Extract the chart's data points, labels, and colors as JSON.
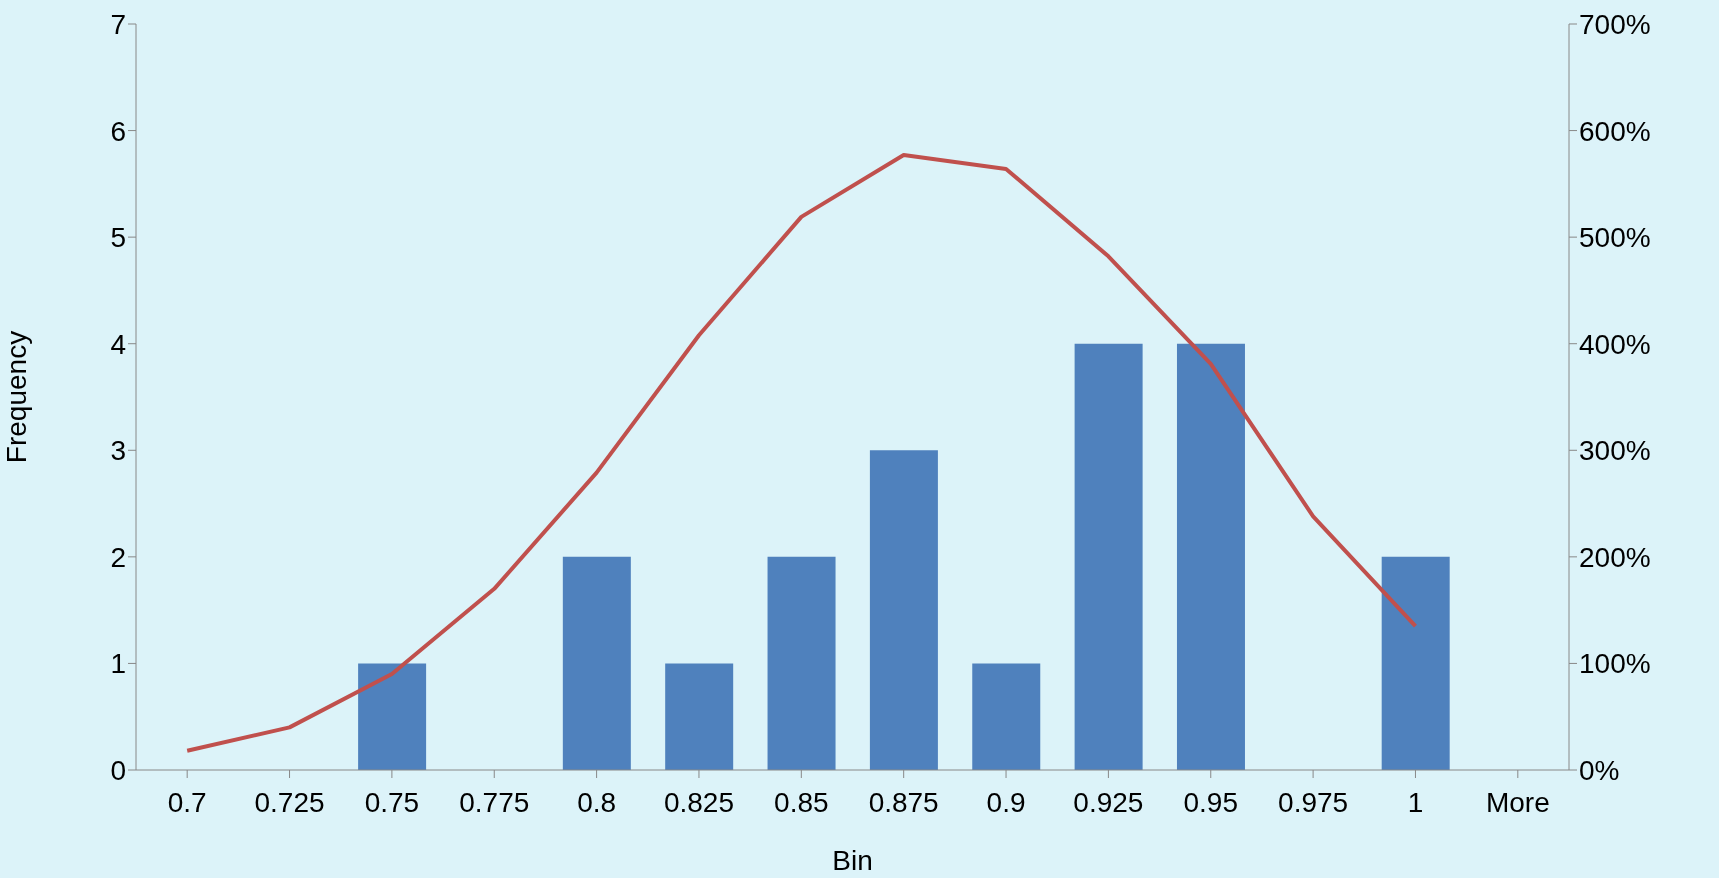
{
  "chart_data": {
    "type": "bar",
    "xlabel": "Bin",
    "ylabel": "Frequency",
    "categories": [
      "0.7",
      "0.725",
      "0.75",
      "0.775",
      "0.8",
      "0.825",
      "0.85",
      "0.875",
      "0.9",
      "0.925",
      "0.95",
      "0.975",
      "1",
      "More"
    ],
    "series": [
      {
        "color": "#4f81bd",
        "values": [
          0,
          0,
          1,
          0,
          2,
          1,
          2,
          3,
          1,
          4,
          4,
          0,
          2,
          0
        ]
      },
      {
        "type": "line",
        "axis": "y2",
        "color": "#c0504d",
        "values": [
          18,
          40,
          90,
          170,
          279,
          408,
          519,
          577,
          564,
          482,
          381,
          238,
          135,
          null
        ]
      }
    ],
    "ylim": [
      0,
      7
    ],
    "yticks": [
      0,
      1,
      2,
      3,
      4,
      5,
      6,
      7
    ],
    "y2lim": [
      0,
      700
    ],
    "y2ticks": [
      {
        "value": 0,
        "label": "0%"
      },
      {
        "value": 100,
        "label": "100%"
      },
      {
        "value": 200,
        "label": "200%"
      },
      {
        "value": 300,
        "label": "300%"
      },
      {
        "value": 400,
        "label": "400%"
      },
      {
        "value": 500,
        "label": "500%"
      },
      {
        "value": 600,
        "label": "600%"
      },
      {
        "value": 700,
        "label": "700%"
      }
    ],
    "grid": false,
    "legend": false,
    "marker": "none"
  }
}
